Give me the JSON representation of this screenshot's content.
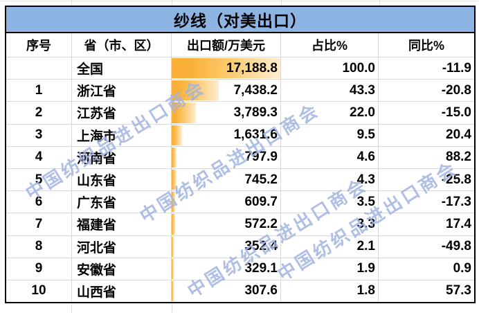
{
  "chart_data": {
    "type": "table",
    "title": "纱线（对美出口）",
    "columns": [
      "序号",
      "省（市、区）",
      "出口额/万美元",
      "占比%",
      "同比%"
    ],
    "databar_column": "出口额/万美元",
    "databar_max": 17188.8,
    "export_values_numeric": [
      17188.8,
      7438.2,
      3789.3,
      1631.6,
      797.9,
      745.2,
      609.7,
      572.2,
      352.4,
      329.1,
      307.6
    ],
    "rows": [
      {
        "no": "",
        "province": "全国",
        "export": "17,188.8",
        "share": "100.0",
        "yoy": "-11.9",
        "bar_pct": 100.0
      },
      {
        "no": "1",
        "province": "浙江省",
        "export": "7,438.2",
        "share": "43.3",
        "yoy": "-20.8",
        "bar_pct": 43.3
      },
      {
        "no": "2",
        "province": "江苏省",
        "export": "3,789.3",
        "share": "22.0",
        "yoy": "-15.0",
        "bar_pct": 22.0
      },
      {
        "no": "3",
        "province": "上海市",
        "export": "1,631.6",
        "share": "9.5",
        "yoy": "20.4",
        "bar_pct": 9.5
      },
      {
        "no": "4",
        "province": "河南省",
        "export": "797.9",
        "share": "4.6",
        "yoy": "88.2",
        "bar_pct": 4.6
      },
      {
        "no": "5",
        "province": "山东省",
        "export": "745.2",
        "share": "4.3",
        "yoy": "-25.8",
        "bar_pct": 4.3
      },
      {
        "no": "6",
        "province": "广东省",
        "export": "609.7",
        "share": "3.5",
        "yoy": "-17.3",
        "bar_pct": 3.5
      },
      {
        "no": "7",
        "province": "福建省",
        "export": "572.2",
        "share": "3.3",
        "yoy": "17.4",
        "bar_pct": 3.3
      },
      {
        "no": "8",
        "province": "河北省",
        "export": "352.4",
        "share": "2.1",
        "yoy": "-49.8",
        "bar_pct": 2.1
      },
      {
        "no": "9",
        "province": "安徽省",
        "export": "329.1",
        "share": "1.9",
        "yoy": "0.9",
        "bar_pct": 1.9
      },
      {
        "no": "10",
        "province": "山西省",
        "export": "307.6",
        "share": "1.8",
        "yoy": "57.3",
        "bar_pct": 1.8
      }
    ]
  },
  "watermark": {
    "text": "中国纺织品进出口商会",
    "color": "#A0B3E1"
  },
  "colors": {
    "title_bg": "#8DB4E2",
    "databar_start": "#FBB139",
    "databar_end": "#FDEDD0",
    "gridline": "#D9D9D9",
    "outer_border": "#000000",
    "text": "#000000"
  }
}
